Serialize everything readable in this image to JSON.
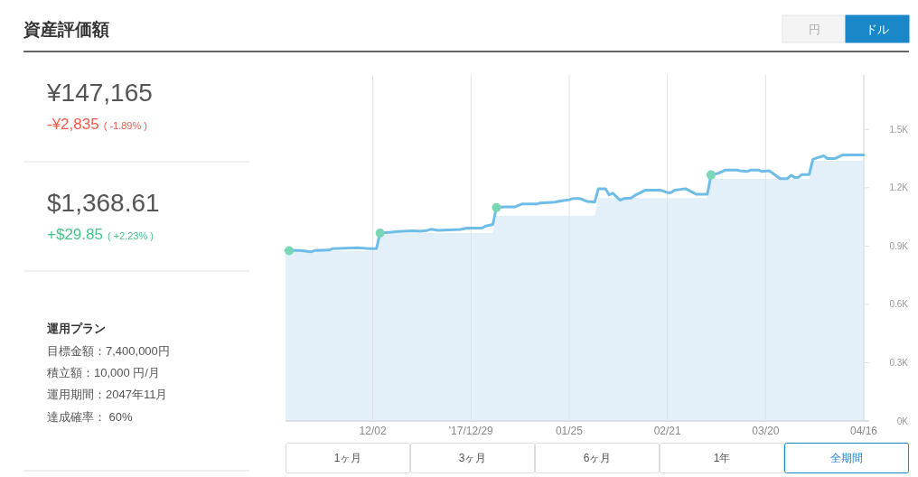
{
  "chart_data": [
    {
      "type": "other",
      "title": "資産評価額",
      "annotations": [
        "¥147,165",
        "-¥2,835",
        "( -1.89% )",
        "$1,368.61",
        "+$29.85",
        "( +2.23% )",
        "運用プラン",
        "目標金額：7,400,000円",
        "積立額：10,000 円/月",
        "運用期間：2047年11月",
        "達成確率： 60%"
      ]
    },
    {
      "type": "line",
      "annotations": [
        "円",
        "ドル",
        "1ヶ月",
        "3ヶ月",
        "6ヶ月",
        "1年",
        "全期間"
      ],
      "xlim": [
        "2017-11-08",
        "2018-04-16"
      ],
      "xticks": [
        {
          "value": "2017-12-02",
          "label": "12/02"
        },
        {
          "value": "2017-12-29",
          "label": "'17/12/29"
        },
        {
          "value": "2018-01-25",
          "label": "01/25"
        },
        {
          "value": "2018-02-21",
          "label": "02/21"
        },
        {
          "value": "2018-03-20",
          "label": "03/20"
        },
        {
          "value": "2018-04-16",
          "label": "04/16"
        }
      ],
      "ylim": [
        0,
        1780
      ],
      "yticks": [
        {
          "value": 0,
          "label": "0K"
        },
        {
          "value": 300,
          "label": "0.3K"
        },
        {
          "value": 600,
          "label": "0.6K"
        },
        {
          "value": 900,
          "label": "0.9K"
        },
        {
          "value": 1200,
          "label": "1.2K"
        },
        {
          "value": 1500,
          "label": "1.5K"
        }
      ],
      "grid": "x",
      "series": [
        {
          "type": "area",
          "color": "#e4f0f9",
          "x": [
            "2017-11-08",
            "2017-12-03",
            "2017-12-04",
            "2018-01-04",
            "2018-01-05",
            "2018-02-01",
            "2018-02-02",
            "2018-03-04",
            "2018-03-05",
            "2018-04-01",
            "2018-04-02",
            "2018-04-16"
          ],
          "values": [
            875,
            875,
            967,
            967,
            1056,
            1056,
            1147,
            1147,
            1245,
            1245,
            1338,
            1338
          ]
        },
        {
          "type": "line",
          "color": "#6dbde8",
          "x": [
            "2017-11-08",
            "2017-11-12",
            "2017-11-15",
            "2017-11-16",
            "2017-11-20",
            "2017-11-21",
            "2017-11-26",
            "2017-11-28",
            "2017-12-01",
            "2017-12-03",
            "2017-12-04",
            "2017-12-07",
            "2017-12-09",
            "2017-12-13",
            "2017-12-15",
            "2017-12-17",
            "2017-12-18",
            "2017-12-20",
            "2017-12-26",
            "2017-12-28",
            "2018-01-01",
            "2018-01-02",
            "2018-01-04",
            "2018-01-05",
            "2018-01-07",
            "2018-01-10",
            "2018-01-12",
            "2018-01-16",
            "2018-01-17",
            "2018-01-21",
            "2018-01-23",
            "2018-01-25",
            "2018-01-26",
            "2018-01-28",
            "2018-01-30",
            "2018-02-01",
            "2018-02-02",
            "2018-02-04",
            "2018-02-05",
            "2018-02-06",
            "2018-02-08",
            "2018-02-09",
            "2018-02-11",
            "2018-02-12",
            "2018-02-15",
            "2018-02-19",
            "2018-02-21",
            "2018-02-22",
            "2018-02-23",
            "2018-02-26",
            "2018-03-01",
            "2018-03-04",
            "2018-03-05",
            "2018-03-07",
            "2018-03-09",
            "2018-03-12",
            "2018-03-13",
            "2018-03-15",
            "2018-03-16",
            "2018-03-18",
            "2018-03-19",
            "2018-03-21",
            "2018-03-24",
            "2018-03-26",
            "2018-03-27",
            "2018-03-28",
            "2018-03-29",
            "2018-03-30",
            "2018-04-01",
            "2018-04-02",
            "2018-04-03",
            "2018-04-05",
            "2018-04-06",
            "2018-04-08",
            "2018-04-10",
            "2018-04-12",
            "2018-04-16"
          ],
          "values": [
            877,
            877,
            870,
            877,
            879,
            887,
            890,
            891,
            887,
            887,
            967,
            971,
            975,
            978,
            976,
            981,
            986,
            981,
            985,
            992,
            992,
            1003,
            1011,
            1098,
            1102,
            1101,
            1116,
            1116,
            1121,
            1126,
            1133,
            1138,
            1144,
            1144,
            1129,
            1126,
            1194,
            1194,
            1163,
            1172,
            1136,
            1144,
            1147,
            1160,
            1188,
            1188,
            1175,
            1175,
            1187,
            1195,
            1166,
            1167,
            1266,
            1274,
            1291,
            1291,
            1287,
            1284,
            1291,
            1291,
            1284,
            1287,
            1247,
            1247,
            1264,
            1253,
            1253,
            1268,
            1268,
            1346,
            1353,
            1364,
            1350,
            1350,
            1367,
            1369,
            1369
          ]
        },
        {
          "type": "scatter",
          "color": "#7ad7b5",
          "marker": "circle",
          "x": [
            "2017-11-09",
            "2017-12-04",
            "2018-01-05",
            "2018-03-05"
          ],
          "values": [
            876,
            967,
            1098,
            1266
          ]
        }
      ]
    }
  ]
}
